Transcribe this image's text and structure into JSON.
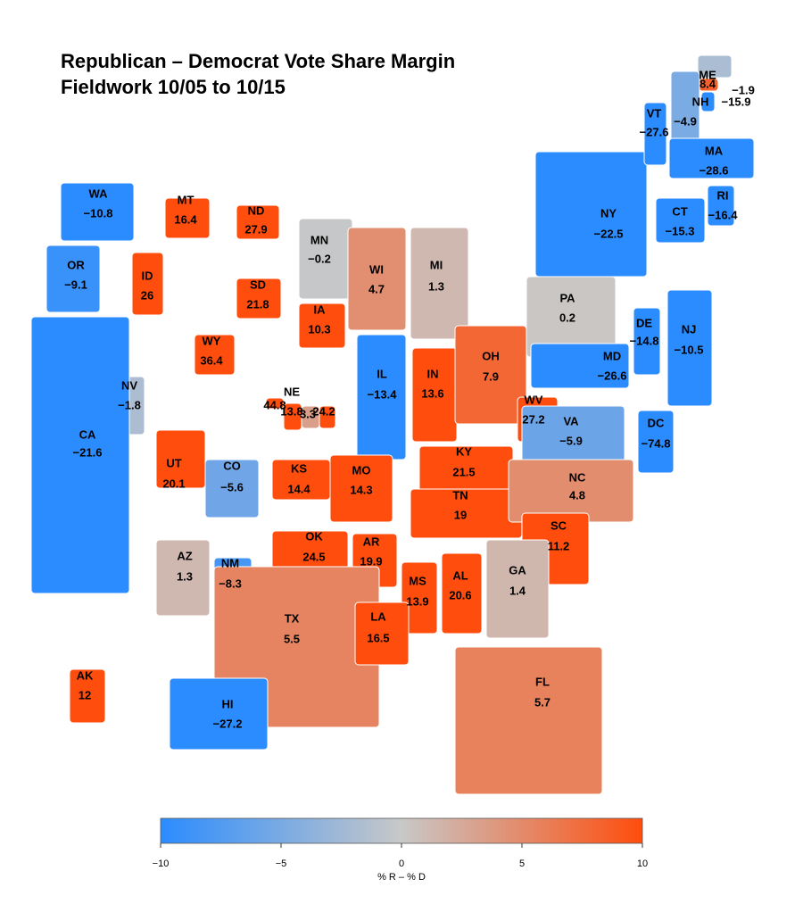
{
  "title": "Republican – Democrat Vote Share Margin",
  "subtitle": "Fieldwork 10/05 to 10/15",
  "states": [
    {
      "abbr": "WA",
      "value": -10.8,
      "label": "−10.8"
    },
    {
      "abbr": "MT",
      "value": 16.4
    },
    {
      "abbr": "ND",
      "value": 27.9
    },
    {
      "abbr": "MN",
      "value": -0.2,
      "label": "−0.2"
    },
    {
      "abbr": "OR",
      "value": -9.1,
      "label": "−9.1"
    },
    {
      "abbr": "ID",
      "value": 26
    },
    {
      "abbr": "SD",
      "value": 21.8
    },
    {
      "abbr": "WI",
      "value": 4.7
    },
    {
      "abbr": "MI",
      "value": 1.3
    },
    {
      "abbr": "IA",
      "value": 10.3
    },
    {
      "abbr": "WY",
      "value": 36.4
    },
    {
      "abbr": "PA",
      "value": 0.2
    },
    {
      "abbr": "NY",
      "value": -22.5,
      "label": "−22.5"
    },
    {
      "abbr": "VT",
      "value": -27.6,
      "label": "−27.6"
    },
    {
      "abbr": "ME",
      "value": 8.4
    },
    {
      "value": -1.9,
      "label": "−1.9"
    },
    {
      "value": -15.9,
      "label": "−15.9"
    },
    {
      "abbr": "NH",
      "value": -4.9,
      "label": "−4.9"
    },
    {
      "abbr": "MA",
      "value": -28.6,
      "label": "−28.6"
    },
    {
      "abbr": "CT",
      "value": -15.3,
      "label": "−15.3"
    },
    {
      "abbr": "RI",
      "value": -16.4,
      "label": "−16.4"
    },
    {
      "abbr": "NE",
      "value": 44.8
    },
    {
      "value": 13.8
    },
    {
      "value": 3.3
    },
    {
      "value": 24.2
    },
    {
      "abbr": "NV",
      "value": -1.8,
      "label": "−1.8"
    },
    {
      "abbr": "IL",
      "value": -13.4,
      "label": "−13.4"
    },
    {
      "abbr": "IN",
      "value": 13.6
    },
    {
      "abbr": "OH",
      "value": 7.9
    },
    {
      "abbr": "DE",
      "value": -14.8,
      "label": "−14.8"
    },
    {
      "abbr": "MD",
      "value": -26.6,
      "label": "−26.6"
    },
    {
      "abbr": "NJ",
      "value": -10.5,
      "label": "−10.5"
    },
    {
      "abbr": "WV",
      "value": 27.2
    },
    {
      "abbr": "VA",
      "value": -5.9,
      "label": "−5.9"
    },
    {
      "abbr": "DC",
      "value": -74.8,
      "label": "−74.8"
    },
    {
      "abbr": "CA",
      "value": -21.6,
      "label": "−21.6"
    },
    {
      "abbr": "UT",
      "value": 20.1
    },
    {
      "abbr": "CO",
      "value": -5.6,
      "label": "−5.6"
    },
    {
      "abbr": "KS",
      "value": 14.4
    },
    {
      "abbr": "MO",
      "value": 14.3
    },
    {
      "abbr": "KY",
      "value": 21.5
    },
    {
      "abbr": "TN",
      "value": 19
    },
    {
      "abbr": "NC",
      "value": 4.8
    },
    {
      "abbr": "OK",
      "value": 24.5
    },
    {
      "abbr": "AR",
      "value": 19.9
    },
    {
      "abbr": "SC",
      "value": 11.2
    },
    {
      "abbr": "AZ",
      "value": 1.3
    },
    {
      "abbr": "NM",
      "value": -8.3,
      "label": "−8.3"
    },
    {
      "abbr": "GA",
      "value": 1.4
    },
    {
      "abbr": "MS",
      "value": 13.9
    },
    {
      "abbr": "AL",
      "value": 20.6
    },
    {
      "abbr": "TX",
      "value": 5.5
    },
    {
      "abbr": "LA",
      "value": 16.5
    },
    {
      "abbr": "FL",
      "value": 5.7
    },
    {
      "abbr": "AK",
      "value": 12
    },
    {
      "abbr": "HI",
      "value": -27.2,
      "label": "−27.2"
    }
  ],
  "colorbar": {
    "label": "% R – % D",
    "lim": [
      -10,
      10
    ],
    "colors": [
      "#2b8cff",
      "#c8c8c8",
      "#ff4d0d"
    ],
    "ticks": [
      {
        "value": -10,
        "label": "−10"
      },
      {
        "value": -5,
        "label": "−5"
      },
      0,
      5,
      10
    ]
  }
}
